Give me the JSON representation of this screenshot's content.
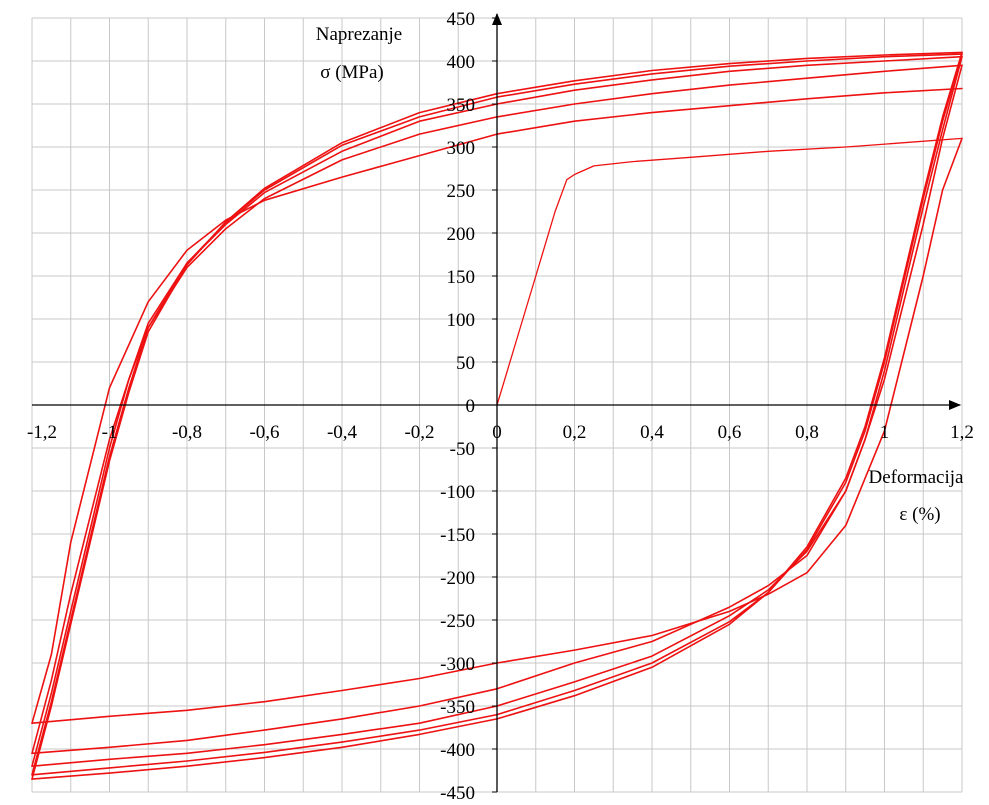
{
  "chart_data": {
    "type": "line",
    "xlabel_lines": [
      "Deformacija",
      "ε (%)"
    ],
    "ylabel_lines": [
      "Naprezanje",
      "σ (MPa)"
    ],
    "xlim": [
      -1.2,
      1.2
    ],
    "ylim": [
      -450,
      450
    ],
    "x_ticks": [
      -1.2,
      -1.0,
      -0.8,
      -0.6,
      -0.4,
      -0.2,
      0,
      0.2,
      0.4,
      0.6,
      0.8,
      1.0,
      1.2
    ],
    "x_tick_labels": [
      "-1,2",
      "-1",
      "-0,8",
      "-0,6",
      "-0,4",
      "-0,2",
      "0",
      "0,2",
      "0,4",
      "0,6",
      "0,8",
      "1",
      "1,2"
    ],
    "y_ticks": [
      450,
      400,
      350,
      300,
      250,
      200,
      150,
      100,
      50,
      0,
      -50,
      -100,
      -150,
      -200,
      -250,
      -300,
      -350,
      -400,
      -450
    ],
    "y_tick_labels": [
      "450",
      "400",
      "350",
      "300",
      "250",
      "200",
      "150",
      "100",
      "50",
      "0",
      "-50",
      "-100",
      "-150",
      "-200",
      "-250",
      "-300",
      "-350",
      "-400",
      "-450"
    ],
    "grid": true,
    "line_color": "#ee1111",
    "series": [
      {
        "x": [
          0,
          0.02,
          0.05,
          0.1,
          0.15,
          0.18,
          0.2,
          0.25,
          0.35,
          0.5,
          0.7,
          0.9,
          1.05,
          1.2
        ],
        "y": [
          0,
          30,
          75,
          150,
          225,
          262,
          268,
          278,
          283,
          288,
          295,
          300,
          305,
          310
        ]
      },
      {
        "x": [
          1.2,
          1.15,
          1.1,
          1.0,
          0.9,
          0.8,
          0.7,
          0.6,
          0.4,
          0.2,
          0.0,
          -0.2,
          -0.4,
          -0.6,
          -0.8,
          -1.0,
          -1.2
        ],
        "y": [
          310,
          250,
          150,
          -30,
          -140,
          -195,
          -220,
          -240,
          -268,
          -285,
          -300,
          -318,
          -332,
          -345,
          -355,
          -362,
          -370
        ]
      },
      {
        "x": [
          -1.2,
          -1.15,
          -1.1,
          -1.0,
          -0.9,
          -0.8,
          -0.7,
          -0.6,
          -0.4,
          -0.2,
          0.0,
          0.2,
          0.4,
          0.6,
          0.8,
          1.0,
          1.2
        ],
        "y": [
          -370,
          -290,
          -160,
          20,
          120,
          180,
          215,
          238,
          265,
          290,
          315,
          330,
          340,
          348,
          356,
          363,
          368
        ]
      },
      {
        "x": [
          1.2,
          1.15,
          1.1,
          1.0,
          0.95,
          0.9,
          0.8,
          0.7,
          0.6,
          0.4,
          0.2,
          0.0,
          -0.2,
          -0.4,
          -0.6,
          -0.8,
          -1.0,
          -1.2
        ],
        "y": [
          395,
          310,
          210,
          30,
          -40,
          -100,
          -175,
          -210,
          -235,
          -275,
          -300,
          -330,
          -350,
          -365,
          -378,
          -390,
          -398,
          -405
        ]
      },
      {
        "x": [
          -1.2,
          -1.15,
          -1.1,
          -1.0,
          -0.95,
          -0.9,
          -0.8,
          -0.7,
          -0.6,
          -0.4,
          -0.2,
          0.0,
          0.2,
          0.4,
          0.6,
          0.8,
          1.0,
          1.2
        ],
        "y": [
          -405,
          -320,
          -220,
          -40,
          30,
          90,
          160,
          205,
          240,
          285,
          315,
          335,
          350,
          362,
          372,
          380,
          388,
          395
        ]
      },
      {
        "x": [
          1.2,
          1.15,
          1.1,
          1.0,
          0.95,
          0.9,
          0.8,
          0.7,
          0.6,
          0.4,
          0.2,
          0.0,
          -0.2,
          -0.4,
          -0.6,
          -0.8,
          -1.0,
          -1.2
        ],
        "y": [
          405,
          320,
          230,
          40,
          -40,
          -100,
          -170,
          -215,
          -245,
          -292,
          -322,
          -350,
          -370,
          -383,
          -395,
          -405,
          -412,
          -420
        ]
      },
      {
        "x": [
          -1.2,
          -1.15,
          -1.1,
          -1.0,
          -0.95,
          -0.9,
          -0.8,
          -0.7,
          -0.6,
          -0.4,
          -0.2,
          0.0,
          0.2,
          0.4,
          0.6,
          0.8,
          1.0,
          1.2
        ],
        "y": [
          -420,
          -335,
          -240,
          -50,
          30,
          95,
          165,
          210,
          247,
          295,
          330,
          350,
          366,
          378,
          388,
          395,
          400,
          405
        ]
      },
      {
        "x": [
          1.2,
          1.15,
          1.1,
          1.0,
          0.95,
          0.9,
          0.8,
          0.7,
          0.6,
          0.4,
          0.2,
          0.0,
          -0.2,
          -0.4,
          -0.6,
          -0.8,
          -1.0,
          -1.2
        ],
        "y": [
          408,
          330,
          240,
          50,
          -30,
          -90,
          -168,
          -218,
          -252,
          -300,
          -332,
          -360,
          -378,
          -392,
          -404,
          -414,
          -422,
          -430
        ]
      },
      {
        "x": [
          -1.2,
          -1.15,
          -1.1,
          -1.0,
          -0.95,
          -0.9,
          -0.8,
          -0.7,
          -0.6,
          -0.4,
          -0.2,
          0.0,
          0.2,
          0.4,
          0.6,
          0.8,
          1.0,
          1.2
        ],
        "y": [
          -430,
          -345,
          -250,
          -60,
          20,
          90,
          165,
          212,
          250,
          302,
          335,
          358,
          373,
          385,
          394,
          400,
          405,
          408
        ]
      },
      {
        "x": [
          1.2,
          1.15,
          1.1,
          1.0,
          0.95,
          0.9,
          0.8,
          0.7,
          0.6,
          0.4,
          0.2,
          0.0,
          -0.2,
          -0.4,
          -0.6,
          -0.8,
          -1.0,
          -1.2
        ],
        "y": [
          410,
          335,
          245,
          55,
          -25,
          -85,
          -165,
          -218,
          -255,
          -305,
          -338,
          -365,
          -383,
          -398,
          -410,
          -420,
          -428,
          -435
        ]
      },
      {
        "x": [
          -1.2,
          -1.15,
          -1.1,
          -1.0,
          -0.95,
          -0.9,
          -0.8,
          -0.7,
          -0.6,
          -0.4,
          -0.2,
          0.0,
          0.2,
          0.4,
          0.6,
          0.8,
          1.0,
          1.2
        ],
        "y": [
          -435,
          -350,
          -255,
          -65,
          15,
          85,
          163,
          213,
          252,
          305,
          340,
          362,
          377,
          389,
          397,
          403,
          407,
          410
        ]
      }
    ]
  }
}
